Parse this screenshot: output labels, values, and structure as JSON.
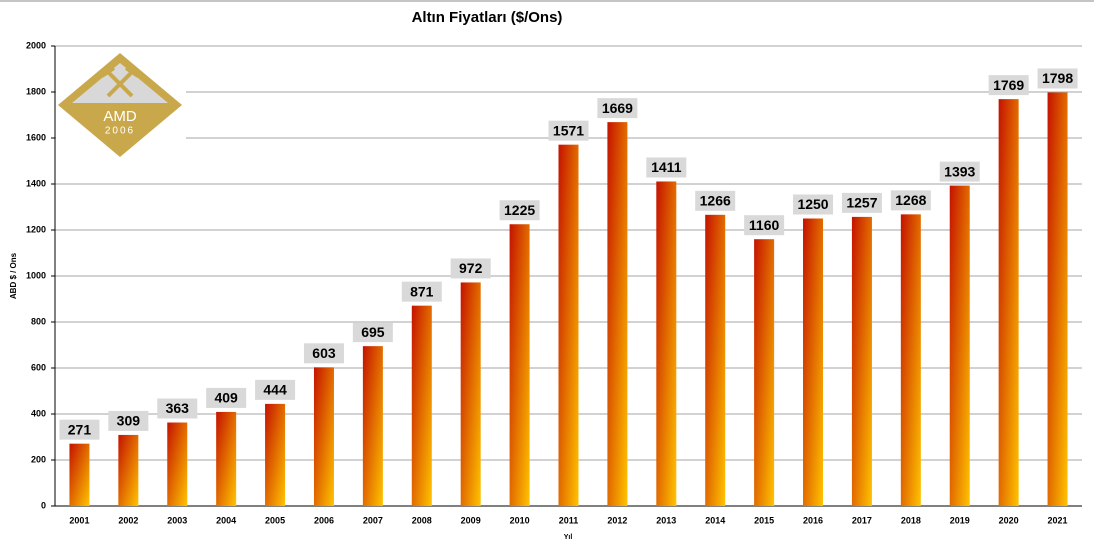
{
  "chart_data": {
    "type": "bar",
    "title": "Altın Fiyatları ($/Ons)",
    "y_label": "ABD $ / Ons",
    "x_label": "Yıl",
    "categories": [
      "2001",
      "2002",
      "2003",
      "2004",
      "2005",
      "2006",
      "2007",
      "2008",
      "2009",
      "2010",
      "2011",
      "2012",
      "2013",
      "2014",
      "2015",
      "2016",
      "2017",
      "2018",
      "2019",
      "2020",
      "2021"
    ],
    "values": [
      271,
      309,
      363,
      409,
      444,
      603,
      695,
      871,
      972,
      1225,
      1571,
      1669,
      1411,
      1266,
      1160,
      1250,
      1257,
      1268,
      1393,
      1769,
      1798
    ],
    "color": [
      "#c41200",
      "#ffc400"
    ],
    "ylim": [
      0,
      2000
    ],
    "yticks": [
      0,
      200,
      400,
      600,
      800,
      1000,
      1200,
      1400,
      1600,
      1800,
      2000
    ],
    "grid": true
  },
  "logo": {
    "name": "AMD",
    "year": "2006"
  }
}
